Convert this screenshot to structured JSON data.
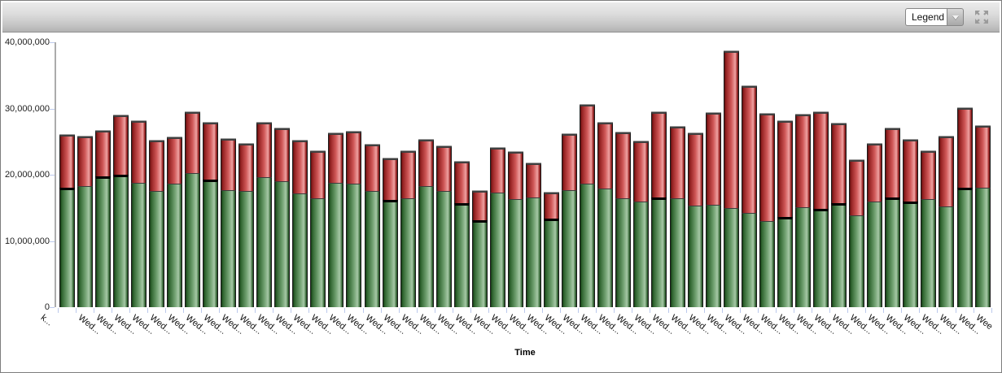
{
  "toolbar": {
    "legend_label": "Legend",
    "dropdown_icon": "chevron-down",
    "expand_icon": "expand-arrows",
    "bg_top": "#ebebeb",
    "bg_bottom": "#b3b3b3"
  },
  "chart_data": {
    "type": "bar",
    "stacked": true,
    "title": "",
    "xlabel": "Time",
    "ylabel": "",
    "ylim": [
      0,
      40000000
    ],
    "grid": false,
    "legend_position": "collapsed-dropdown",
    "label_rotation_deg": 38,
    "yticks": [
      0,
      10000000,
      20000000,
      30000000,
      40000000
    ],
    "ytick_labels": [
      "0",
      "10,000,000",
      "20,000,000",
      "30,000,000",
      "40,000,000"
    ],
    "categories": [
      "k...",
      "Wed...",
      "Wed...",
      "Wed...",
      "Wed...",
      "Wed...",
      "Wed...",
      "Wed...",
      "Wed...",
      "Wed...",
      "Wed...",
      "Wed...",
      "Wed...",
      "Wed...",
      "Wed...",
      "Wed...",
      "Wed...",
      "Wed...",
      "Wed...",
      "Wed...",
      "Wed...",
      "Wed...",
      "Wed...",
      "Wed...",
      "Wed...",
      "Wed...",
      "Wed...",
      "Wed...",
      "Wed...",
      "Wed...",
      "Wed...",
      "Wed...",
      "Wed...",
      "Wed...",
      "Wed...",
      "Wed...",
      "Wed...",
      "Wed...",
      "Wed...",
      "Wed...",
      "Wed...",
      "Wed...",
      "Wed...",
      "Wed...",
      "Wed...",
      "Wed...",
      "Wed...",
      "Wed...",
      "Wed...",
      "Wed...",
      "Wed...",
      "Wee"
    ],
    "series": [
      {
        "name": "green",
        "color": "#6b9c6b",
        "values": [
          18100000,
          18300000,
          19700000,
          20000000,
          18800000,
          17600000,
          18700000,
          20200000,
          19300000,
          17700000,
          17500000,
          19600000,
          19000000,
          17200000,
          16500000,
          18800000,
          18700000,
          17600000,
          16200000,
          16400000,
          18300000,
          17500000,
          15700000,
          13100000,
          17300000,
          16300000,
          16600000,
          13400000,
          17700000,
          18700000,
          17900000,
          16500000,
          16000000,
          16600000,
          16500000,
          15400000,
          15500000,
          15000000,
          14200000,
          13000000,
          13600000,
          15100000,
          14800000,
          15700000,
          13900000,
          16000000,
          16600000,
          16000000,
          16300000,
          15200000,
          18100000,
          18000000
        ]
      },
      {
        "name": "red",
        "color": "#cf5757",
        "values": [
          7900000,
          7500000,
          6900000,
          8900000,
          9300000,
          7600000,
          7000000,
          9300000,
          8600000,
          7700000,
          7200000,
          8300000,
          8000000,
          7900000,
          7000000,
          7400000,
          7800000,
          7000000,
          6300000,
          7200000,
          7000000,
          6800000,
          6300000,
          4400000,
          6800000,
          7100000,
          5100000,
          3900000,
          8400000,
          11800000,
          10000000,
          9900000,
          9000000,
          12800000,
          10800000,
          10800000,
          13800000,
          23700000,
          19200000,
          16200000,
          14500000,
          14000000,
          14600000,
          12000000,
          8300000,
          8700000,
          10400000,
          9300000,
          7200000,
          10600000,
          12000000,
          9400000
        ]
      }
    ],
    "black_cap_bar_indexes": [
      0,
      2,
      3,
      8,
      18,
      22,
      23,
      27,
      33,
      40,
      42,
      43,
      46,
      47,
      50
    ]
  }
}
